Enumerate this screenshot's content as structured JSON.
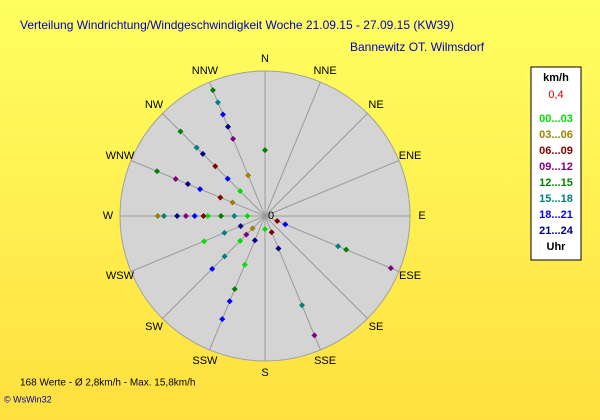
{
  "chart_data": {
    "type": "polar-scatter",
    "title": "Verteilung Windrichtung/Windgeschwindigkeit  Woche 21.09.15 - 27.09.15 (KW39)",
    "subtitle": "Bannewitz OT. Wilmsdorf",
    "directions": [
      "N",
      "NNE",
      "NE",
      "ENE",
      "E",
      "ESE",
      "SE",
      "SSE",
      "S",
      "SSW",
      "SW",
      "WSW",
      "W",
      "WNW",
      "NW",
      "NNW"
    ],
    "center_label": "0",
    "rlim": [
      0,
      16.5
    ],
    "legend": {
      "unit": "km/h",
      "calm": "0,4",
      "footer": "Uhr"
    },
    "series": [
      {
        "name": "00...03",
        "color": "#00e000",
        "points": [
          [
            270,
            6.5
          ],
          [
            202.5,
            6
          ],
          [
            247.5,
            7.5
          ],
          [
            225,
            4
          ],
          [
            180,
            1.5
          ],
          [
            315,
            4
          ],
          [
            270,
            2
          ]
        ]
      },
      {
        "name": "03...06",
        "color": "#a08000",
        "points": [
          [
            270,
            12.2
          ],
          [
            292.5,
            4
          ],
          [
            337.5,
            5
          ],
          [
            225,
            2
          ]
        ]
      },
      {
        "name": "06...09",
        "color": "#800000",
        "points": [
          [
            315,
            8
          ],
          [
            270,
            7
          ],
          [
            292.5,
            5.5
          ],
          [
            112.5,
            1.5
          ],
          [
            157.5,
            2
          ]
        ]
      },
      {
        "name": "09...12",
        "color": "#800080",
        "points": [
          [
            112.5,
            15.5
          ],
          [
            157.5,
            14.7
          ],
          [
            292.5,
            11
          ],
          [
            270,
            9
          ],
          [
            337.5,
            9.5
          ],
          [
            225,
            3
          ]
        ]
      },
      {
        "name": "12...15",
        "color": "#008000",
        "points": [
          [
            337.5,
            15.5
          ],
          [
            0,
            7.5
          ],
          [
            315,
            13.6
          ],
          [
            292.5,
            13.3
          ],
          [
            270,
            5
          ],
          [
            112.5,
            10
          ],
          [
            202.5,
            9
          ]
        ]
      },
      {
        "name": "15...18",
        "color": "#008080",
        "points": [
          [
            337.5,
            14
          ],
          [
            315,
            11
          ],
          [
            270,
            11.5
          ],
          [
            157.5,
            11
          ],
          [
            112.5,
            9
          ],
          [
            247.5,
            5
          ],
          [
            225,
            6.5
          ],
          [
            270,
            3.5
          ]
        ]
      },
      {
        "name": "18...21",
        "color": "#0000ff",
        "points": [
          [
            337.5,
            12.5
          ],
          [
            202.5,
            12.7
          ],
          [
            202.5,
            10.5
          ],
          [
            270,
            8
          ],
          [
            292.5,
            8
          ],
          [
            225,
            8.5
          ],
          [
            112.5,
            2.5
          ],
          [
            315,
            6
          ]
        ]
      },
      {
        "name": "21...24",
        "color": "#000080",
        "points": [
          [
            337.5,
            11
          ],
          [
            270,
            10
          ],
          [
            292.5,
            9.5
          ],
          [
            315,
            10
          ],
          [
            202.5,
            3
          ],
          [
            157.5,
            4
          ],
          [
            247.5,
            3
          ]
        ]
      }
    ],
    "footer": {
      "stats": "168 Werte   -   Ø 2,8km/h  -  Max. 15,8km/h",
      "credit": "© WsWin32"
    }
  }
}
